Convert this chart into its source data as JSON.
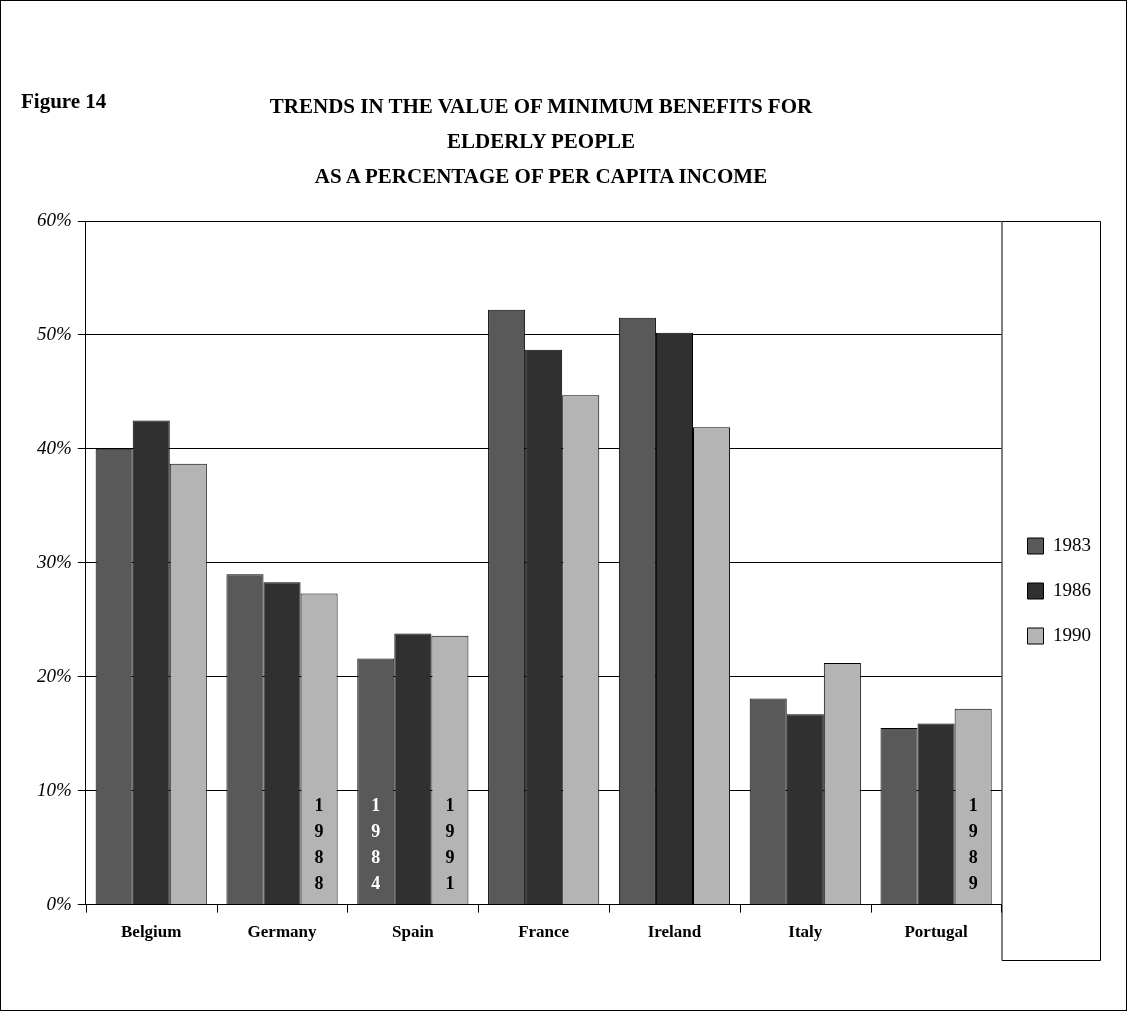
{
  "chart_data": {
    "type": "bar",
    "subtitle": "Figure 14",
    "title": "TRENDS IN THE VALUE OF MINIMUM BENEFITS FOR\nELDERLY PEOPLE\nAS A PERCENTAGE OF PER CAPITA INCOME",
    "categories": [
      "Belgium",
      "Germany",
      "Spain",
      "France",
      "Ireland",
      "Italy",
      "Portugal"
    ],
    "series": [
      {
        "name": "1983",
        "color": "#595959",
        "values": [
          40.0,
          29.0,
          21.6,
          52.2,
          51.5,
          18.1,
          15.5
        ]
      },
      {
        "name": "1986",
        "color": "#303030",
        "values": [
          42.5,
          28.3,
          23.8,
          48.7,
          50.2,
          16.7,
          15.9
        ]
      },
      {
        "name": "1990",
        "color": "#b4b4b4",
        "values": [
          38.7,
          27.3,
          23.6,
          44.7,
          41.9,
          21.2,
          17.2
        ]
      }
    ],
    "annotations": [
      "1988",
      "1984",
      "1991",
      "1989"
    ],
    "ylim": [
      0,
      60
    ],
    "yticks": [
      {
        "value": 0,
        "label": "0%"
      },
      {
        "value": 10,
        "label": "10%"
      },
      {
        "value": 20,
        "label": "20%"
      },
      {
        "value": 30,
        "label": "30%"
      },
      {
        "value": 40,
        "label": "40%"
      },
      {
        "value": 50,
        "label": "50%"
      },
      {
        "value": 60,
        "label": "60%"
      }
    ],
    "grid": "y",
    "legend": "right"
  }
}
